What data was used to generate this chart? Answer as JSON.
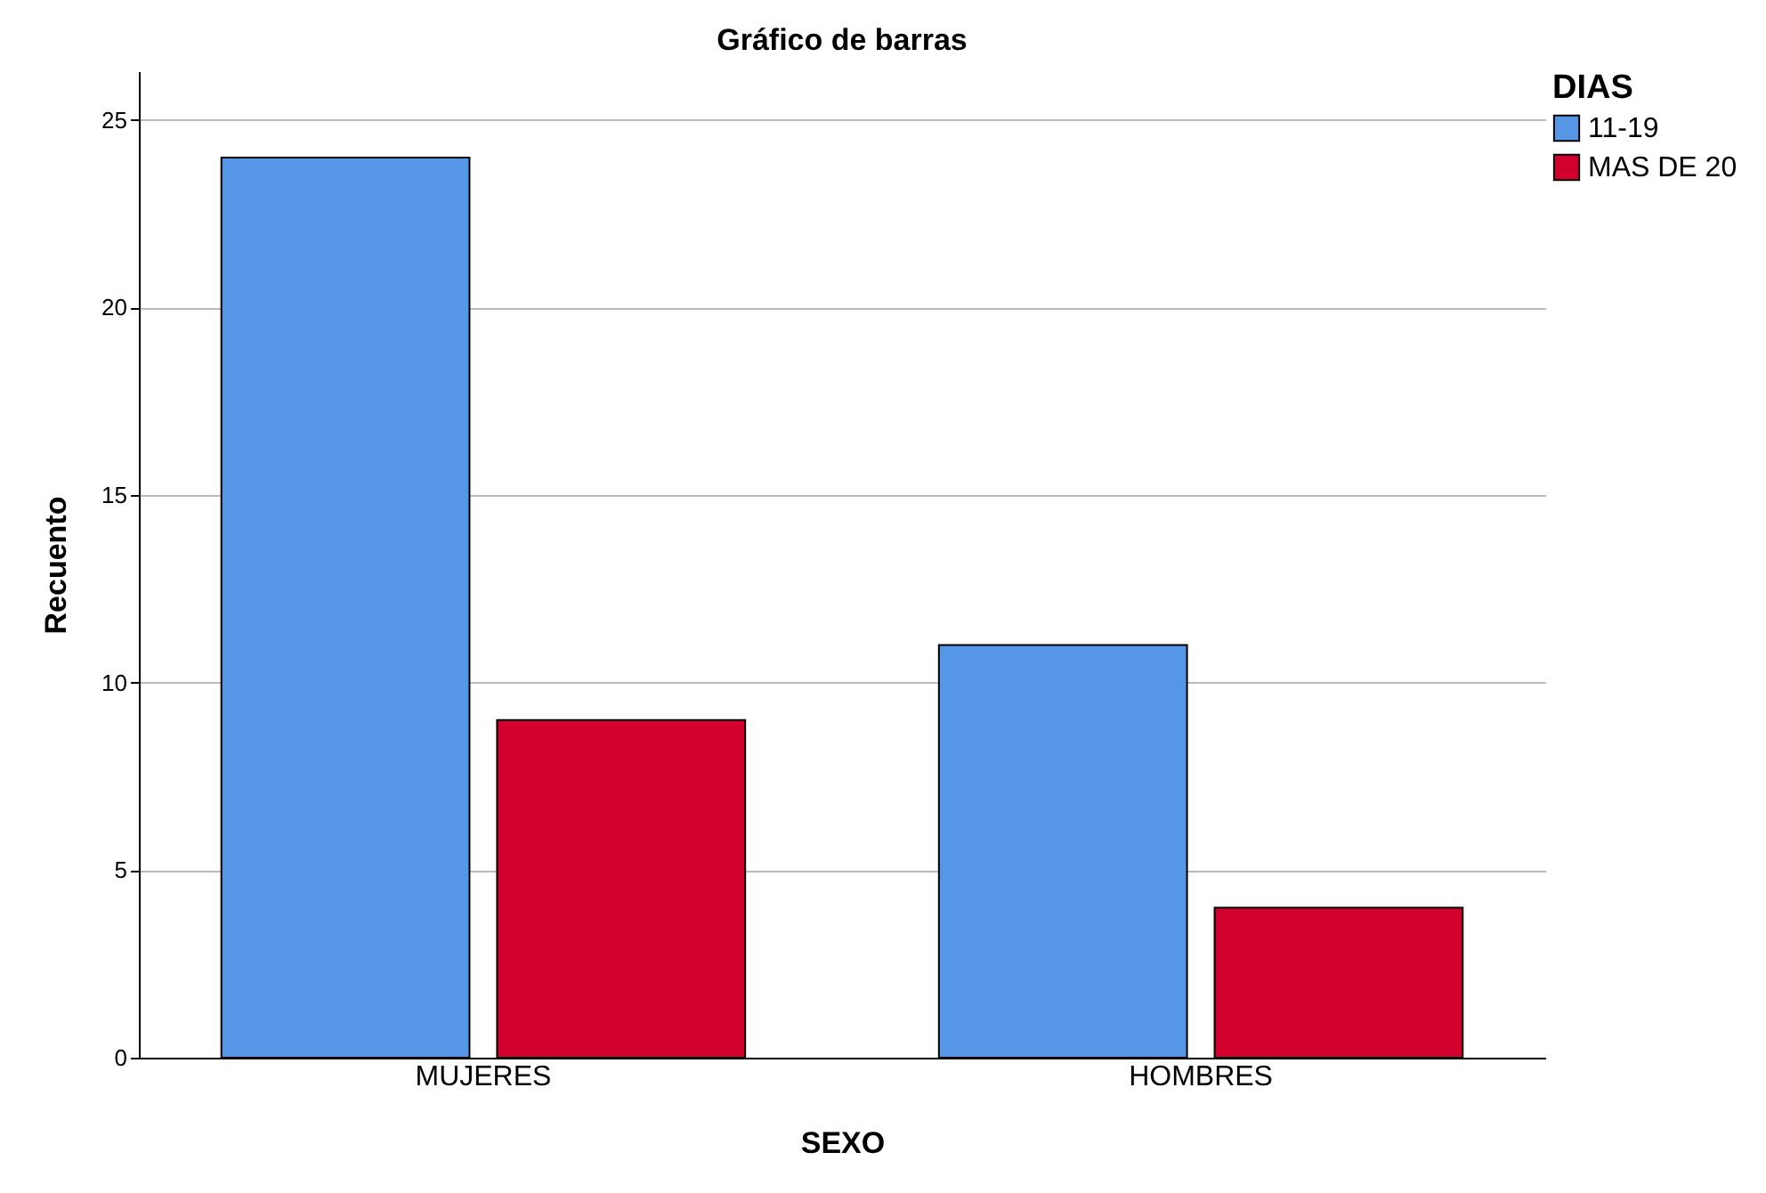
{
  "chart_data": {
    "type": "bar",
    "title": "Gráfico de barras",
    "xlabel": "SEXO",
    "ylabel": "Recuento",
    "legend_title": "DIAS",
    "categories": [
      "MUJERES",
      "HOMBRES"
    ],
    "series": [
      {
        "name": "11-19",
        "color": "#5596e6",
        "values": [
          24,
          11
        ]
      },
      {
        "name": "MAS DE 20",
        "color": "#d2002d",
        "values": [
          9,
          4
        ]
      }
    ],
    "ylim": [
      0,
      26.3
    ],
    "yticks": [
      0,
      5,
      10,
      15,
      20,
      25
    ],
    "grid": "y",
    "legend": "top right"
  }
}
